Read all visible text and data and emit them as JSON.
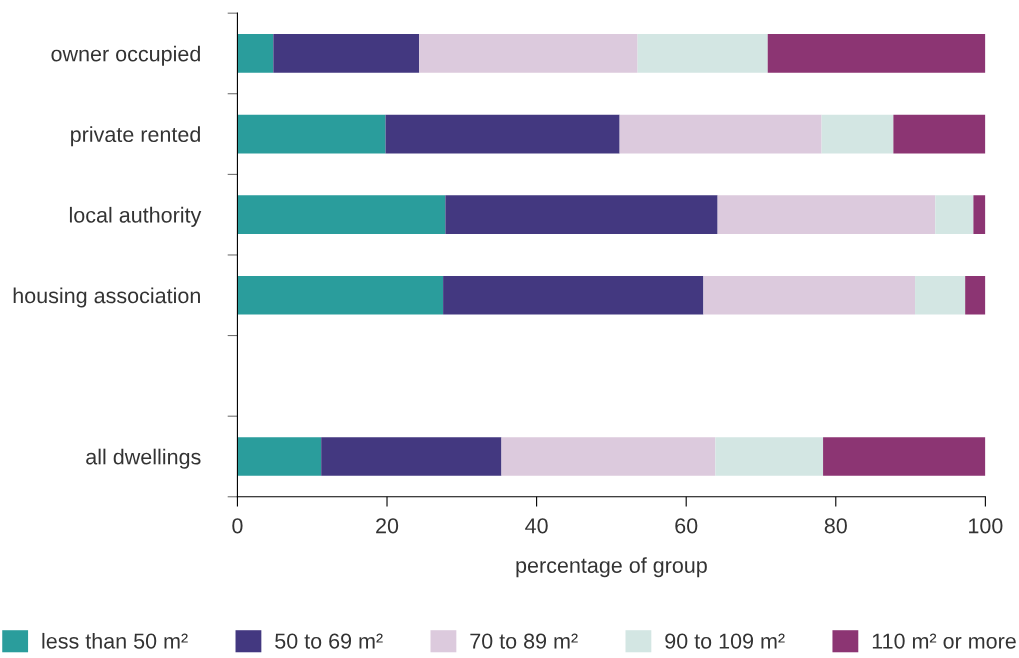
{
  "chart_data": {
    "type": "bar",
    "orientation": "horizontal",
    "stacked": true,
    "categories": [
      "owner occupied",
      "private rented",
      "local authority",
      "housing association",
      null,
      "all dwellings"
    ],
    "series": [
      {
        "name": "less than 50 m²",
        "color": "#2a9d9c",
        "values": [
          4.8,
          19.8,
          27.8,
          27.5,
          null,
          11.2
        ]
      },
      {
        "name": "50 to 69 m²",
        "color": "#433880",
        "values": [
          19.5,
          31.3,
          36.4,
          34.8,
          null,
          24.1
        ]
      },
      {
        "name": "70 to 89 m²",
        "color": "#dccadd",
        "values": [
          29.2,
          27.0,
          29.1,
          28.3,
          null,
          28.6
        ]
      },
      {
        "name": "90 to 109 m²",
        "color": "#d3e6e3",
        "values": [
          17.4,
          9.6,
          5.1,
          6.7,
          null,
          14.4
        ]
      },
      {
        "name": "110 m² or more",
        "color": "#8c3573",
        "values": [
          29.1,
          12.3,
          1.6,
          2.7,
          null,
          21.7
        ]
      }
    ],
    "xlabel": "percentage of group",
    "xlim": [
      0,
      100
    ],
    "xticks": [
      0,
      20,
      40,
      60,
      80,
      100
    ],
    "grid": false,
    "legend": "bottom"
  }
}
